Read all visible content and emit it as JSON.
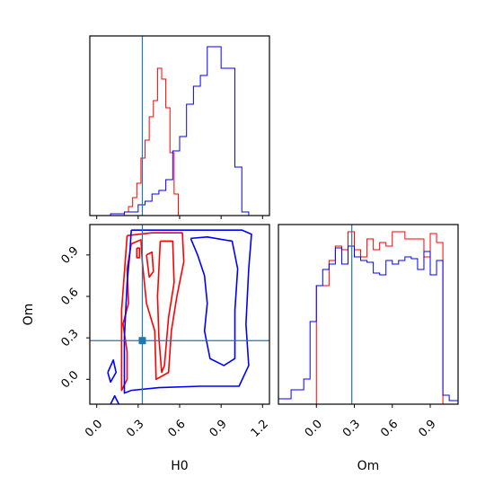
{
  "chart_data": [
    {
      "type": "histogram",
      "panel": "H0-marginal",
      "xlim": [
        -0.05,
        1.25
      ],
      "xticks": [
        0.0,
        0.3,
        0.6,
        0.9,
        1.2
      ],
      "tick_labels_visible": false,
      "truth_line": {
        "x": 0.33,
        "color": "#1f77b4"
      },
      "series": [
        {
          "color": "#ff0000",
          "bin_edges": [
            0.2,
            0.23,
            0.26,
            0.29,
            0.32,
            0.35,
            0.38,
            0.41,
            0.44,
            0.47,
            0.5,
            0.53,
            0.56,
            0.59,
            0.62
          ],
          "counts": [
            0.02,
            0.05,
            0.1,
            0.18,
            0.32,
            0.42,
            0.55,
            0.64,
            0.82,
            0.76,
            0.6,
            0.35,
            0.12,
            0.0
          ]
        },
        {
          "color": "#0000ff",
          "bin_edges": [
            0.1,
            0.2,
            0.3,
            0.35,
            0.4,
            0.45,
            0.5,
            0.55,
            0.6,
            0.65,
            0.7,
            0.75,
            0.8,
            0.85,
            0.9,
            0.95,
            1.0,
            1.05,
            1.1,
            1.15
          ],
          "counts": [
            0.01,
            0.02,
            0.06,
            0.08,
            0.12,
            0.14,
            0.2,
            0.36,
            0.44,
            0.62,
            0.72,
            0.78,
            0.94,
            0.94,
            0.82,
            0.82,
            0.27,
            0.02,
            0.0
          ]
        }
      ]
    },
    {
      "type": "contour",
      "panel": "H0-Om-joint",
      "xlim": [
        -0.05,
        1.25
      ],
      "ylim": [
        -0.18,
        1.12
      ],
      "xticks": [
        0.0,
        0.3,
        0.6,
        0.9,
        1.2
      ],
      "xtick_labels": [
        "0.0",
        "0.3",
        "0.6",
        "0.9",
        "1.2"
      ],
      "yticks": [
        0.0,
        0.3,
        0.6,
        0.9
      ],
      "ytick_labels": [
        "0.0",
        "0.3",
        "0.6",
        "0.9"
      ],
      "xlabel": "H0",
      "ylabel": "Om",
      "truth_point": {
        "x": 0.33,
        "y": 0.28,
        "color": "#1f77b4"
      },
      "series": [
        {
          "color": "#ff0000",
          "contours": [
            [
              [
                0.22,
                1.04
              ],
              [
                0.4,
                1.06
              ],
              [
                0.62,
                1.06
              ],
              [
                0.63,
                0.85
              ],
              [
                0.58,
                0.6
              ],
              [
                0.54,
                0.35
              ],
              [
                0.52,
                0.05
              ],
              [
                0.43,
                0.0
              ],
              [
                0.42,
                0.35
              ],
              [
                0.36,
                0.55
              ],
              [
                0.33,
                0.85
              ],
              [
                0.32,
                1.01
              ],
              [
                0.25,
                0.98
              ],
              [
                0.22,
                0.8
              ],
              [
                0.23,
                0.55
              ],
              [
                0.19,
                0.4
              ],
              [
                0.22,
                0.2
              ],
              [
                0.22,
                0.0
              ],
              [
                0.18,
                -0.08
              ],
              [
                0.18,
                0.5
              ],
              [
                0.22,
                1.04
              ]
            ],
            [
              [
                0.46,
                1.0
              ],
              [
                0.55,
                1.0
              ],
              [
                0.56,
                0.7
              ],
              [
                0.52,
                0.45
              ],
              [
                0.49,
                0.1
              ],
              [
                0.47,
                0.05
              ],
              [
                0.45,
                0.3
              ],
              [
                0.44,
                0.6
              ],
              [
                0.46,
                1.0
              ]
            ],
            [
              [
                0.36,
                0.9
              ],
              [
                0.4,
                0.92
              ],
              [
                0.41,
                0.78
              ],
              [
                0.38,
                0.74
              ],
              [
                0.36,
                0.9
              ]
            ],
            [
              [
                0.29,
                0.95
              ],
              [
                0.31,
                0.95
              ],
              [
                0.31,
                0.88
              ],
              [
                0.29,
                0.88
              ],
              [
                0.29,
                0.95
              ]
            ]
          ]
        },
        {
          "color": "#0000ff",
          "contours": [
            [
              [
                0.25,
                1.08
              ],
              [
                0.7,
                1.08
              ],
              [
                1.05,
                1.08
              ],
              [
                1.12,
                1.05
              ],
              [
                1.1,
                0.8
              ],
              [
                1.08,
                0.4
              ],
              [
                1.1,
                0.1
              ],
              [
                1.03,
                -0.05
              ],
              [
                0.75,
                -0.05
              ],
              [
                0.45,
                -0.06
              ],
              [
                0.25,
                -0.08
              ],
              [
                0.2,
                -0.1
              ],
              [
                0.2,
                0.3
              ],
              [
                0.22,
                0.7
              ],
              [
                0.24,
                0.92
              ],
              [
                0.25,
                1.08
              ]
            ],
            [
              [
                0.68,
                1.02
              ],
              [
                0.73,
                0.9
              ],
              [
                0.78,
                0.75
              ],
              [
                0.8,
                0.55
              ],
              [
                0.78,
                0.35
              ],
              [
                0.82,
                0.15
              ],
              [
                0.92,
                0.1
              ],
              [
                1.0,
                0.15
              ],
              [
                1.0,
                0.5
              ],
              [
                1.02,
                0.8
              ],
              [
                0.98,
                1.0
              ],
              [
                0.8,
                1.03
              ],
              [
                0.68,
                1.02
              ]
            ],
            [
              [
                0.08,
                0.05
              ],
              [
                0.12,
                0.14
              ],
              [
                0.14,
                0.05
              ],
              [
                0.1,
                -0.02
              ],
              [
                0.08,
                0.05
              ]
            ],
            [
              [
                0.1,
                -0.18
              ],
              [
                0.13,
                -0.12
              ],
              [
                0.16,
                -0.18
              ]
            ]
          ]
        }
      ]
    },
    {
      "type": "histogram",
      "panel": "Om-marginal",
      "xlim": [
        -0.3,
        1.12
      ],
      "xticks": [
        0.0,
        0.3,
        0.6,
        0.9
      ],
      "xtick_labels": [
        "0.0",
        "0.3",
        "0.6",
        "0.9"
      ],
      "xlabel": "Om",
      "truth_line": {
        "x": 0.28,
        "color": "#1f77b4"
      },
      "series": [
        {
          "color": "#ff0000",
          "bin_edges": [
            0.0,
            0.05,
            0.1,
            0.15,
            0.2,
            0.25,
            0.3,
            0.35,
            0.4,
            0.45,
            0.5,
            0.55,
            0.6,
            0.65,
            0.7,
            0.75,
            0.8,
            0.85,
            0.9,
            0.95,
            1.0
          ],
          "counts": [
            0.66,
            0.66,
            0.8,
            0.88,
            0.86,
            0.96,
            0.86,
            0.82,
            0.92,
            0.86,
            0.9,
            0.88,
            0.96,
            0.96,
            0.92,
            0.92,
            0.92,
            0.82,
            0.95,
            0.9
          ]
        },
        {
          "color": "#0000ff",
          "bin_edges": [
            -0.3,
            -0.2,
            -0.1,
            -0.05,
            0.0,
            0.05,
            0.1,
            0.15,
            0.2,
            0.25,
            0.3,
            0.35,
            0.4,
            0.45,
            0.5,
            0.55,
            0.6,
            0.65,
            0.7,
            0.75,
            0.8,
            0.85,
            0.9,
            0.95,
            1.0,
            1.05,
            1.12
          ],
          "counts": [
            0.03,
            0.08,
            0.14,
            0.46,
            0.66,
            0.75,
            0.78,
            0.87,
            0.78,
            0.88,
            0.82,
            0.8,
            0.79,
            0.73,
            0.72,
            0.8,
            0.78,
            0.8,
            0.82,
            0.81,
            0.75,
            0.85,
            0.72,
            0.8,
            0.05,
            0.02
          ]
        }
      ]
    }
  ]
}
